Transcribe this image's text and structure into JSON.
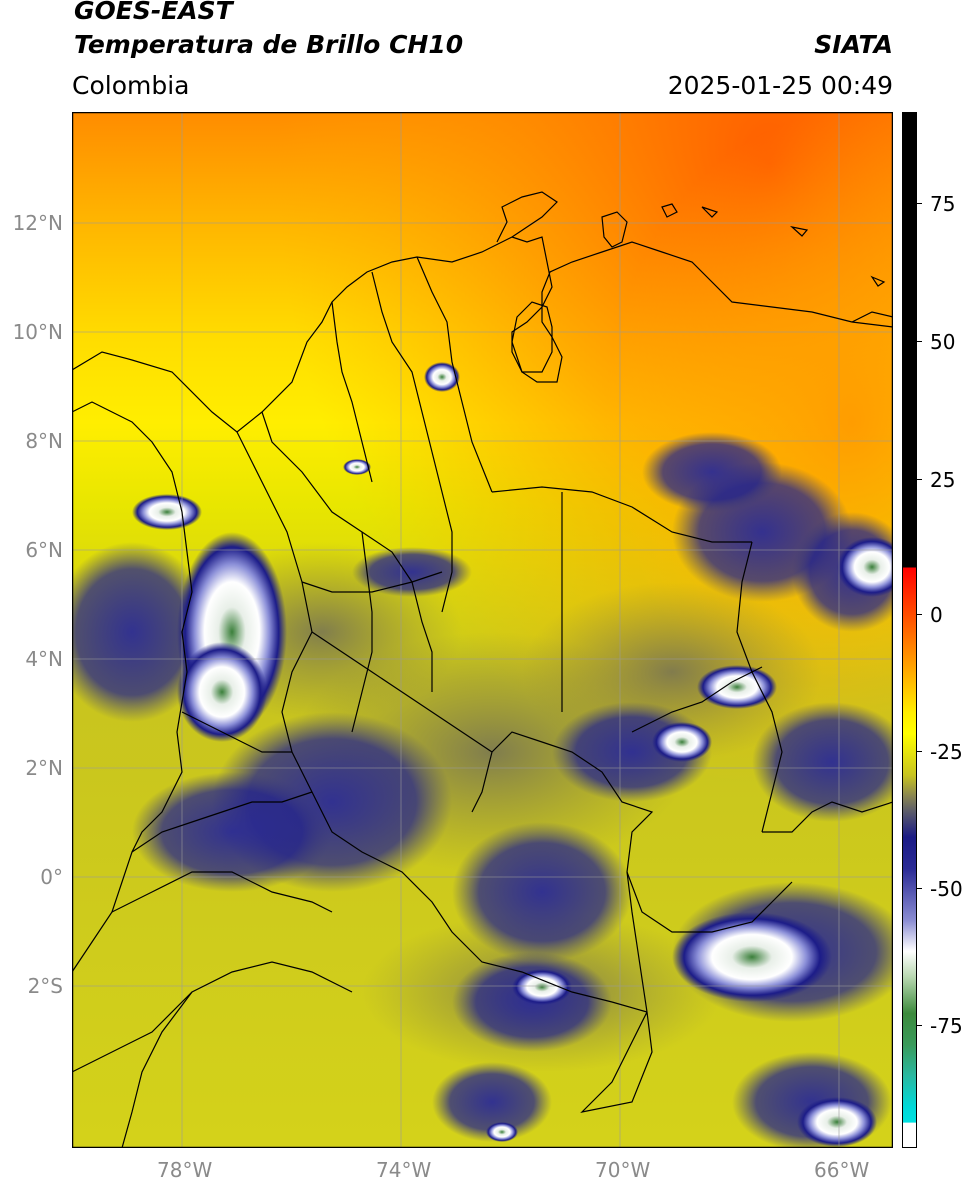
{
  "header": {
    "satellite": "GOES-EAST",
    "product": "Temperatura de Brillo CH10",
    "region": "Colombia",
    "source": "SIATA",
    "datetime": "2025-01-25 00:49"
  },
  "map": {
    "lat_labels": [
      "12°N",
      "10°N",
      "8°N",
      "6°N",
      "4°N",
      "2°N",
      "0°",
      "2°S"
    ],
    "lon_labels": [
      "78°W",
      "74°W",
      "70°W",
      "66°W"
    ],
    "lat_values": [
      12,
      10,
      8,
      6,
      4,
      2,
      0,
      -2
    ],
    "lon_values": [
      -78,
      -74,
      -70,
      -66
    ],
    "extent": {
      "lon_min": -80,
      "lon_max": -65,
      "lat_min": -5,
      "lat_max": 14
    }
  },
  "colorbar": {
    "tick_labels": [
      "75",
      "50",
      "25",
      "0",
      "-25",
      "-50",
      "-75"
    ],
    "tick_values": [
      75,
      50,
      25,
      0,
      -25,
      -50,
      -75
    ],
    "range": [
      -95,
      90
    ],
    "colors": {
      "orange_warm": "#ff6a00",
      "yellow": "#ffff00",
      "olive": "#b8b82a",
      "gray": "#6f6f5a",
      "navy": "#1a1a85",
      "white": "#ffffff",
      "green": "#3c8a3c",
      "cyan": "#00d8d8",
      "black": "#000000",
      "red": "#ff0000"
    }
  }
}
